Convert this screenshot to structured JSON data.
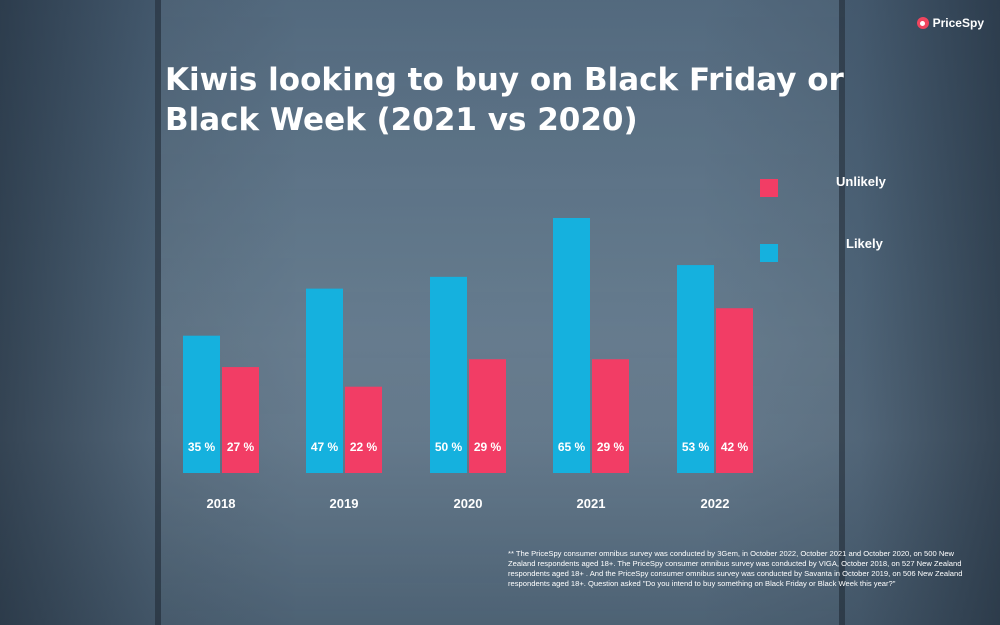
{
  "brand": {
    "name": "PriceSpy",
    "icon": "pricespy-logo-icon"
  },
  "title": "Kiwis looking to buy on Black Friday or Black Week (2021 vs 2020)",
  "colors": {
    "likely": "#15b1de",
    "unlikely": "#f23d65",
    "text": "#ffffff"
  },
  "chart_data": {
    "type": "bar",
    "title": "Kiwis looking to buy on Black Friday or Black Week (2021 vs 2020)",
    "categories": [
      "2018",
      "2019",
      "2020",
      "2021",
      "2022"
    ],
    "series": [
      {
        "name": "Likely",
        "values": [
          35,
          47,
          50,
          65,
          53
        ],
        "labels": [
          "35 %",
          "47 %",
          "50 %",
          "65 %",
          "53 %"
        ],
        "color": "#15b1de"
      },
      {
        "name": "Unlikely",
        "values": [
          27,
          22,
          29,
          29,
          42
        ],
        "labels": [
          "27 %",
          "22 %",
          "29 %",
          "29 %",
          "42 %"
        ],
        "color": "#f23d65"
      }
    ],
    "legend": [
      "Unlikely",
      "Likely"
    ],
    "legend_position": "top-right",
    "ylim": [
      0,
      65
    ],
    "xlabel": "",
    "ylabel": "",
    "grid": false
  },
  "footnote": "** The PriceSpy consumer omnibus survey was conducted by 3Gem, in October 2022, October 2021 and October 2020, on 500 New Zealand respondents aged 18+. The PriceSpy consumer omnibus survey was conducted by VIGA, October 2018, on 527 New Zealand respondents aged 18+ . And the PriceSpy consumer omnibus survey was conducted by Savanta in October 2019, on 506 New Zealand respondents aged 18+. Question asked  \"Do you intend to buy something on Black Friday or Black Week this year?\""
}
